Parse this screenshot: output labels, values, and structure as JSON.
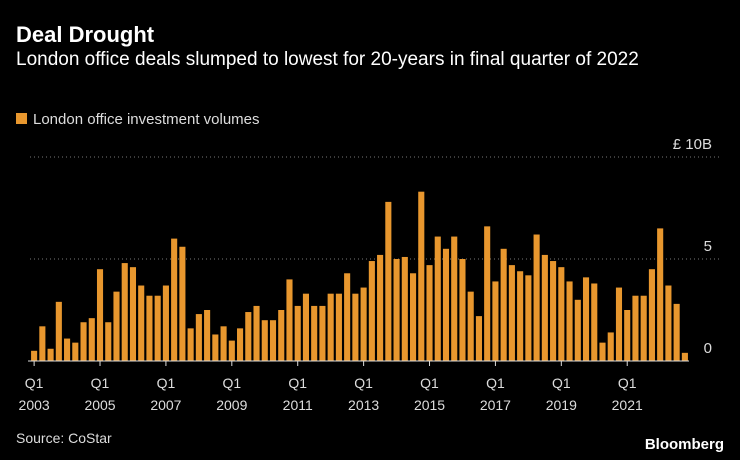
{
  "chart_data": {
    "type": "bar",
    "title": "Deal Drought",
    "subtitle": "London office deals slumped to lowest for 20-years in final quarter of 2022",
    "source": "Source: CoStar",
    "brand": "Bloomberg",
    "categories": [
      [
        "Q1",
        "2003"
      ],
      null,
      null,
      null,
      null,
      null,
      null,
      null,
      [
        "Q1",
        "2005"
      ],
      null,
      null,
      null,
      null,
      null,
      null,
      null,
      [
        "Q1",
        "2007"
      ],
      null,
      null,
      null,
      null,
      null,
      null,
      null,
      [
        "Q1",
        "2009"
      ],
      null,
      null,
      null,
      null,
      null,
      null,
      null,
      [
        "Q1",
        "2011"
      ],
      null,
      null,
      null,
      null,
      null,
      null,
      null,
      [
        "Q1",
        "2013"
      ],
      null,
      null,
      null,
      null,
      null,
      null,
      null,
      [
        "Q1",
        "2015"
      ],
      null,
      null,
      null,
      null,
      null,
      null,
      null,
      [
        "Q1",
        "2017"
      ],
      null,
      null,
      null,
      null,
      null,
      null,
      null,
      [
        "Q1",
        "2019"
      ],
      null,
      null,
      null,
      null,
      null,
      null,
      null,
      [
        "Q1",
        "2021"
      ],
      null,
      null,
      null,
      null,
      null,
      null,
      null
    ],
    "series": [
      {
        "name": "London office investment volumes",
        "color": "#e8972e",
        "values": [
          0.5,
          1.7,
          0.6,
          2.9,
          1.1,
          0.9,
          1.9,
          2.1,
          4.5,
          1.9,
          3.4,
          4.8,
          4.6,
          3.7,
          3.2,
          3.2,
          3.7,
          6.0,
          5.6,
          1.6,
          2.3,
          2.5,
          1.3,
          1.7,
          1.0,
          1.6,
          2.4,
          2.7,
          2.0,
          2.0,
          2.5,
          4.0,
          2.7,
          3.3,
          2.7,
          2.7,
          3.3,
          3.3,
          4.3,
          3.3,
          3.6,
          4.9,
          5.2,
          7.8,
          5.0,
          5.1,
          4.3,
          8.3,
          4.7,
          6.1,
          5.5,
          6.1,
          5.0,
          3.4,
          2.2,
          6.6,
          3.9,
          5.5,
          4.7,
          4.4,
          4.2,
          6.2,
          5.2,
          4.9,
          4.6,
          3.9,
          3.0,
          4.1,
          3.8,
          0.9,
          1.4,
          3.6,
          2.5,
          3.2,
          3.2,
          4.5,
          6.5,
          3.7,
          2.8,
          0.4
        ]
      }
    ],
    "ylim": [
      0,
      10
    ],
    "yticks": [
      0,
      5,
      {
        "value": 10,
        "label": "£ 10B"
      }
    ],
    "grid": true
  }
}
